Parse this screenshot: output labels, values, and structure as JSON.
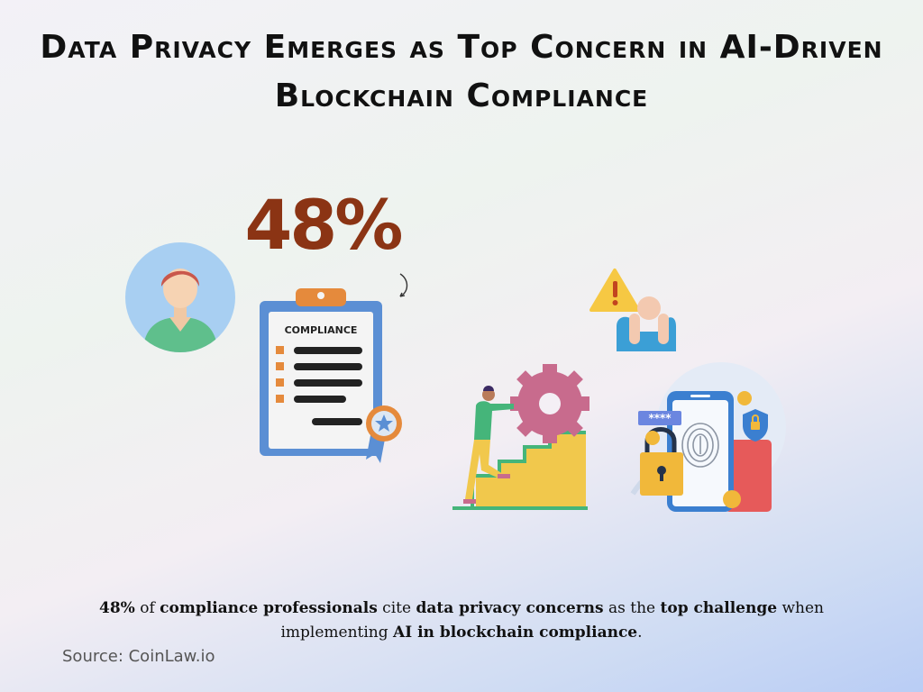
{
  "title": "Data Privacy Emerges as Top Concern in AI-Driven Blockchain Compliance",
  "stat_value": "48%",
  "clipboard_label": "COMPLIANCE",
  "caption": {
    "p1": "48%",
    "p2": " of ",
    "p3": "compliance professionals",
    "p4": " cite ",
    "p5": "data privacy concerns",
    "p6": " as the ",
    "p7": "top challenge",
    "p8": " when implementing ",
    "p9": "AI in blockchain compliance",
    "p10": "."
  },
  "source": "Source: CoinLaw.io",
  "colors": {
    "stat": "#8b3414",
    "clipboard_frame": "#5b8fd4",
    "accent_orange": "#e58a3c",
    "gear": "#c86b8d",
    "stairs": "#f1c84c",
    "lock": "#f1b83a"
  },
  "icons": [
    "person-avatar-icon",
    "clipboard-icon",
    "badge-icon",
    "warning-icon",
    "gear-icon",
    "stairs-icon",
    "phone-icon",
    "fingerprint-icon",
    "padlock-icon",
    "shield-icon",
    "coin-icon",
    "card-icon"
  ]
}
